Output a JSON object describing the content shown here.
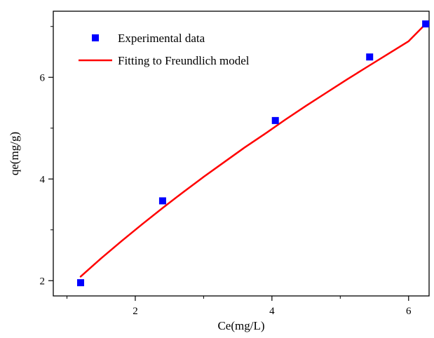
{
  "chart_data": {
    "type": "scatter",
    "title": "",
    "xlabel": "Ce(mg/L)",
    "ylabel": "qe(mg/g)",
    "xlim": [
      0.8,
      6.3
    ],
    "ylim": [
      1.7,
      7.3
    ],
    "xticks_major": [
      2,
      4,
      6
    ],
    "xticks_minor": [
      1,
      3,
      5
    ],
    "yticks_major": [
      2,
      4,
      6
    ],
    "yticks_minor": [
      3,
      5,
      7
    ],
    "grid": false,
    "legend_position": "top-left",
    "series": [
      {
        "name": "Experimental data",
        "kind": "scatter",
        "marker": "square",
        "color": "#0000ff",
        "x": [
          1.2,
          2.4,
          4.05,
          5.43,
          6.25
        ],
        "y": [
          1.96,
          3.57,
          5.15,
          6.4,
          7.05
        ]
      },
      {
        "name": "Fitting to Freundlich model",
        "kind": "line",
        "color": "#ff0000",
        "x": [
          1.2,
          1.5,
          1.8,
          2.1,
          2.4,
          2.7,
          3.0,
          3.3,
          3.6,
          3.9,
          4.2,
          4.5,
          4.8,
          5.1,
          5.4,
          5.7,
          6.0,
          6.25
        ],
        "y": [
          2.08,
          2.44,
          2.78,
          3.11,
          3.43,
          3.74,
          4.04,
          4.33,
          4.62,
          4.89,
          5.17,
          5.44,
          5.7,
          5.96,
          6.21,
          6.46,
          6.71,
          7.05
        ]
      }
    ]
  }
}
